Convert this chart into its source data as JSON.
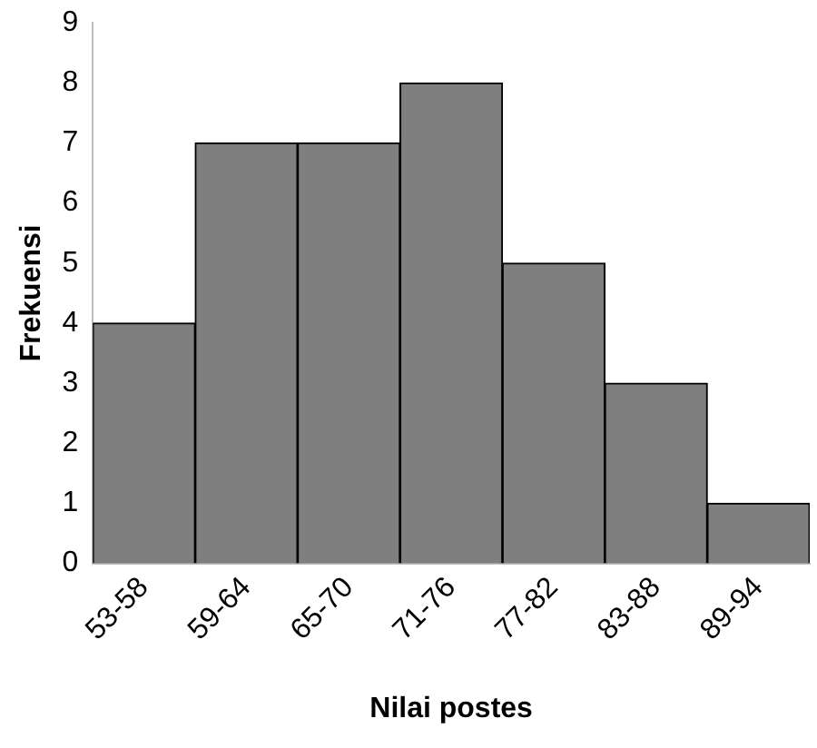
{
  "chart_data": {
    "type": "bar",
    "xlabel": "Nilai postes",
    "ylabel": "Frekuensi",
    "categories": [
      "53-58",
      "59-64",
      "65-70",
      "71-76",
      "77-82",
      "83-88",
      "89-94"
    ],
    "values": [
      4,
      7,
      7,
      8,
      5,
      3,
      1
    ],
    "color": "#7f7f7f",
    "ylim": [
      0,
      9
    ],
    "yticks": [
      0,
      1,
      2,
      3,
      4,
      5,
      6,
      7,
      8,
      9
    ],
    "grid": false,
    "legend": false
  }
}
